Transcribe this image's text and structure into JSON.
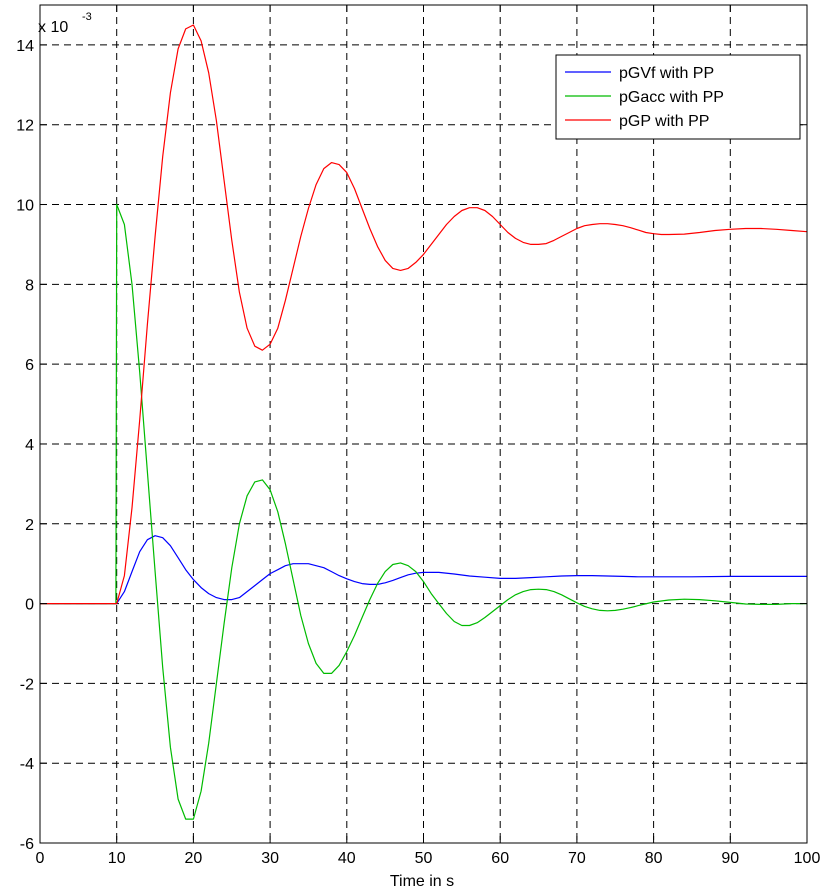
{
  "chart_data": {
    "type": "line",
    "title": "",
    "xlabel": "Time in s",
    "ylabel": "",
    "y_multiplier": {
      "base": "x 10",
      "exponent": "-3"
    },
    "xlim": [
      0,
      100
    ],
    "ylim": [
      -6,
      15
    ],
    "xticks": [
      0,
      10,
      20,
      30,
      40,
      50,
      60,
      70,
      80,
      90,
      100
    ],
    "yticks": [
      -6,
      -4,
      -2,
      0,
      2,
      4,
      6,
      8,
      10,
      12,
      14
    ],
    "grid": true,
    "legend_position": "top-right",
    "series": [
      {
        "name": "pGVf with PP",
        "color": "#0000ff",
        "points": [
          [
            0,
            0
          ],
          [
            10,
            0
          ],
          [
            11,
            0.3
          ],
          [
            12,
            0.8
          ],
          [
            13,
            1.3
          ],
          [
            14,
            1.6
          ],
          [
            15,
            1.7
          ],
          [
            16,
            1.65
          ],
          [
            17,
            1.45
          ],
          [
            18,
            1.15
          ],
          [
            19,
            0.85
          ],
          [
            20,
            0.6
          ],
          [
            21,
            0.4
          ],
          [
            22,
            0.25
          ],
          [
            23,
            0.15
          ],
          [
            24,
            0.1
          ],
          [
            25,
            0.1
          ],
          [
            26,
            0.15
          ],
          [
            27,
            0.3
          ],
          [
            28,
            0.45
          ],
          [
            29,
            0.6
          ],
          [
            30,
            0.75
          ],
          [
            31,
            0.85
          ],
          [
            32,
            0.95
          ],
          [
            33,
            1.0
          ],
          [
            34,
            1.0
          ],
          [
            35,
            1.0
          ],
          [
            36,
            0.95
          ],
          [
            37,
            0.9
          ],
          [
            38,
            0.8
          ],
          [
            39,
            0.7
          ],
          [
            40,
            0.62
          ],
          [
            41,
            0.55
          ],
          [
            42,
            0.5
          ],
          [
            43,
            0.48
          ],
          [
            44,
            0.48
          ],
          [
            45,
            0.52
          ],
          [
            46,
            0.58
          ],
          [
            47,
            0.65
          ],
          [
            48,
            0.72
          ],
          [
            49,
            0.76
          ],
          [
            50,
            0.78
          ],
          [
            52,
            0.78
          ],
          [
            54,
            0.74
          ],
          [
            56,
            0.69
          ],
          [
            58,
            0.66
          ],
          [
            60,
            0.63
          ],
          [
            62,
            0.63
          ],
          [
            64,
            0.65
          ],
          [
            66,
            0.67
          ],
          [
            68,
            0.69
          ],
          [
            70,
            0.7
          ],
          [
            72,
            0.7
          ],
          [
            74,
            0.69
          ],
          [
            76,
            0.68
          ],
          [
            78,
            0.67
          ],
          [
            80,
            0.67
          ],
          [
            85,
            0.67
          ],
          [
            90,
            0.68
          ],
          [
            95,
            0.68
          ],
          [
            100,
            0.68
          ]
        ]
      },
      {
        "name": "pGacc with PP",
        "color": "#00bb00",
        "points": [
          [
            0,
            0
          ],
          [
            9.9,
            0
          ],
          [
            10,
            10
          ],
          [
            11,
            9.5
          ],
          [
            12,
            8.0
          ],
          [
            13,
            5.8
          ],
          [
            14,
            3.3
          ],
          [
            15,
            0.8
          ],
          [
            16,
            -1.6
          ],
          [
            17,
            -3.6
          ],
          [
            18,
            -4.9
          ],
          [
            19,
            -5.4
          ],
          [
            20,
            -5.4
          ],
          [
            21,
            -4.7
          ],
          [
            22,
            -3.5
          ],
          [
            23,
            -2.0
          ],
          [
            24,
            -0.5
          ],
          [
            25,
            0.9
          ],
          [
            26,
            2.0
          ],
          [
            27,
            2.7
          ],
          [
            28,
            3.05
          ],
          [
            29,
            3.1
          ],
          [
            30,
            2.85
          ],
          [
            31,
            2.3
          ],
          [
            32,
            1.5
          ],
          [
            33,
            0.6
          ],
          [
            34,
            -0.3
          ],
          [
            35,
            -1.0
          ],
          [
            36,
            -1.5
          ],
          [
            37,
            -1.75
          ],
          [
            38,
            -1.75
          ],
          [
            39,
            -1.55
          ],
          [
            40,
            -1.2
          ],
          [
            41,
            -0.8
          ],
          [
            42,
            -0.35
          ],
          [
            43,
            0.1
          ],
          [
            44,
            0.5
          ],
          [
            45,
            0.8
          ],
          [
            46,
            0.98
          ],
          [
            47,
            1.02
          ],
          [
            48,
            0.95
          ],
          [
            49,
            0.8
          ],
          [
            50,
            0.55
          ],
          [
            51,
            0.25
          ],
          [
            52,
            0.0
          ],
          [
            53,
            -0.25
          ],
          [
            54,
            -0.45
          ],
          [
            55,
            -0.55
          ],
          [
            56,
            -0.55
          ],
          [
            57,
            -0.48
          ],
          [
            58,
            -0.35
          ],
          [
            59,
            -0.2
          ],
          [
            60,
            -0.05
          ],
          [
            61,
            0.1
          ],
          [
            62,
            0.22
          ],
          [
            63,
            0.3
          ],
          [
            64,
            0.35
          ],
          [
            65,
            0.36
          ],
          [
            66,
            0.35
          ],
          [
            67,
            0.3
          ],
          [
            68,
            0.22
          ],
          [
            69,
            0.12
          ],
          [
            70,
            0.02
          ],
          [
            71,
            -0.07
          ],
          [
            72,
            -0.13
          ],
          [
            73,
            -0.17
          ],
          [
            74,
            -0.18
          ],
          [
            75,
            -0.17
          ],
          [
            76,
            -0.14
          ],
          [
            77,
            -0.1
          ],
          [
            78,
            -0.05
          ],
          [
            80,
            0.04
          ],
          [
            82,
            0.09
          ],
          [
            84,
            0.11
          ],
          [
            86,
            0.1
          ],
          [
            88,
            0.07
          ],
          [
            90,
            0.03
          ],
          [
            92,
            -0.01
          ],
          [
            94,
            -0.02
          ],
          [
            96,
            -0.02
          ],
          [
            98,
            0.0
          ],
          [
            100,
            0.0
          ]
        ]
      },
      {
        "name": "pGP with PP",
        "color": "#ff0000",
        "points": [
          [
            0,
            0
          ],
          [
            10,
            0
          ],
          [
            11,
            0.7
          ],
          [
            12,
            2.4
          ],
          [
            13,
            4.6
          ],
          [
            14,
            7.0
          ],
          [
            15,
            9.2
          ],
          [
            16,
            11.2
          ],
          [
            17,
            12.8
          ],
          [
            18,
            13.9
          ],
          [
            19,
            14.4
          ],
          [
            20,
            14.5
          ],
          [
            21,
            14.1
          ],
          [
            22,
            13.3
          ],
          [
            23,
            12.1
          ],
          [
            24,
            10.6
          ],
          [
            25,
            9.1
          ],
          [
            26,
            7.8
          ],
          [
            27,
            6.9
          ],
          [
            28,
            6.45
          ],
          [
            29,
            6.35
          ],
          [
            30,
            6.5
          ],
          [
            31,
            6.9
          ],
          [
            32,
            7.6
          ],
          [
            33,
            8.4
          ],
          [
            34,
            9.2
          ],
          [
            35,
            9.9
          ],
          [
            36,
            10.5
          ],
          [
            37,
            10.9
          ],
          [
            38,
            11.05
          ],
          [
            39,
            11.0
          ],
          [
            40,
            10.8
          ],
          [
            41,
            10.4
          ],
          [
            42,
            9.9
          ],
          [
            43,
            9.4
          ],
          [
            44,
            8.95
          ],
          [
            45,
            8.6
          ],
          [
            46,
            8.4
          ],
          [
            47,
            8.35
          ],
          [
            48,
            8.4
          ],
          [
            49,
            8.55
          ],
          [
            50,
            8.75
          ],
          [
            51,
            9.0
          ],
          [
            52,
            9.25
          ],
          [
            53,
            9.5
          ],
          [
            54,
            9.7
          ],
          [
            55,
            9.85
          ],
          [
            56,
            9.92
          ],
          [
            57,
            9.92
          ],
          [
            58,
            9.85
          ],
          [
            59,
            9.7
          ],
          [
            60,
            9.5
          ],
          [
            61,
            9.3
          ],
          [
            62,
            9.15
          ],
          [
            63,
            9.05
          ],
          [
            64,
            9.0
          ],
          [
            65,
            9.0
          ],
          [
            66,
            9.02
          ],
          [
            67,
            9.1
          ],
          [
            68,
            9.2
          ],
          [
            69,
            9.3
          ],
          [
            70,
            9.4
          ],
          [
            71,
            9.47
          ],
          [
            72,
            9.5
          ],
          [
            73,
            9.52
          ],
          [
            74,
            9.52
          ],
          [
            75,
            9.5
          ],
          [
            76,
            9.47
          ],
          [
            77,
            9.42
          ],
          [
            78,
            9.36
          ],
          [
            79,
            9.3
          ],
          [
            80,
            9.27
          ],
          [
            81,
            9.25
          ],
          [
            82,
            9.25
          ],
          [
            84,
            9.26
          ],
          [
            86,
            9.3
          ],
          [
            88,
            9.35
          ],
          [
            90,
            9.38
          ],
          [
            92,
            9.4
          ],
          [
            94,
            9.4
          ],
          [
            96,
            9.38
          ],
          [
            98,
            9.35
          ],
          [
            100,
            9.32
          ]
        ]
      }
    ]
  }
}
